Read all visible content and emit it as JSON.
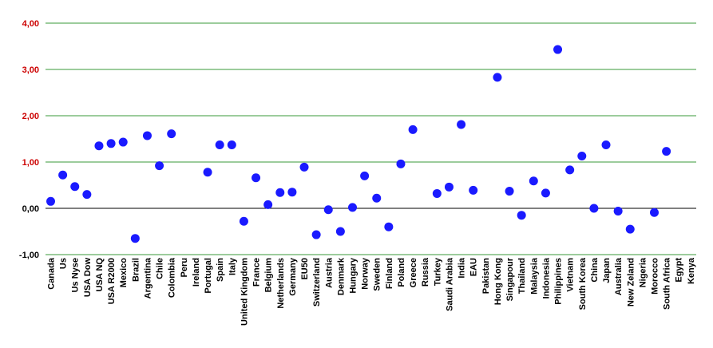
{
  "chart_data": {
    "type": "scatter",
    "title": "",
    "xlabel": "",
    "ylabel": "",
    "ylim": [
      -1.0,
      4.0
    ],
    "yticks": [
      "-1,00",
      "0,00",
      "1,00",
      "2,00",
      "3,00",
      "4,00"
    ],
    "grid": true,
    "legend": "none",
    "categories": [
      "Canada",
      "Us",
      "Us Nyse",
      "USA Dow",
      "USA NQ",
      "USA R2000",
      "Mexico",
      "Brazil",
      "Argentina",
      "Chile",
      "Colombia",
      "Peru",
      "Ireland",
      "Portugal",
      "Spain",
      "Italy",
      "United Kingdom",
      "France",
      "Belgium",
      "Netherlands",
      "Germany",
      "EU50",
      "Switzerland",
      "Austria",
      "Denmark",
      "Hungary",
      "Norway",
      "Sweden",
      "Finland",
      "Poland",
      "Greece",
      "Russia",
      "Turkey",
      "Saudi Arabia",
      "India",
      "EAU",
      "Pakistan",
      "Hong Kong",
      "Singapour",
      "Thailand",
      "Malaysia",
      "Indonesia",
      "Philippines",
      "Vietnam",
      "South Korea",
      "China",
      "Japan",
      "Australia",
      "New Zeland",
      "Nigeria",
      "Morocco",
      "South Africa",
      "Egypt",
      "Kenya"
    ],
    "values": [
      0.15,
      0.72,
      0.47,
      0.3,
      1.35,
      1.4,
      1.43,
      -0.65,
      1.57,
      0.92,
      1.61,
      null,
      null,
      0.78,
      1.37,
      1.37,
      -0.28,
      0.66,
      0.08,
      0.34,
      0.35,
      0.89,
      -0.57,
      -0.03,
      -0.5,
      0.02,
      0.7,
      0.22,
      -0.4,
      0.96,
      1.7,
      null,
      0.32,
      0.46,
      1.81,
      0.39,
      null,
      2.83,
      0.37,
      -0.15,
      0.59,
      0.33,
      3.43,
      0.83,
      1.13,
      0.0,
      1.37,
      -0.06,
      -0.45,
      null,
      -0.09,
      1.23,
      null,
      null
    ],
    "colors": {
      "marker": "#1a1aff",
      "grid": "#3a9a3a",
      "zero_line": "#000000",
      "ytick_positive": "#cc0000",
      "ytick_nonpositive": "#000000"
    }
  }
}
